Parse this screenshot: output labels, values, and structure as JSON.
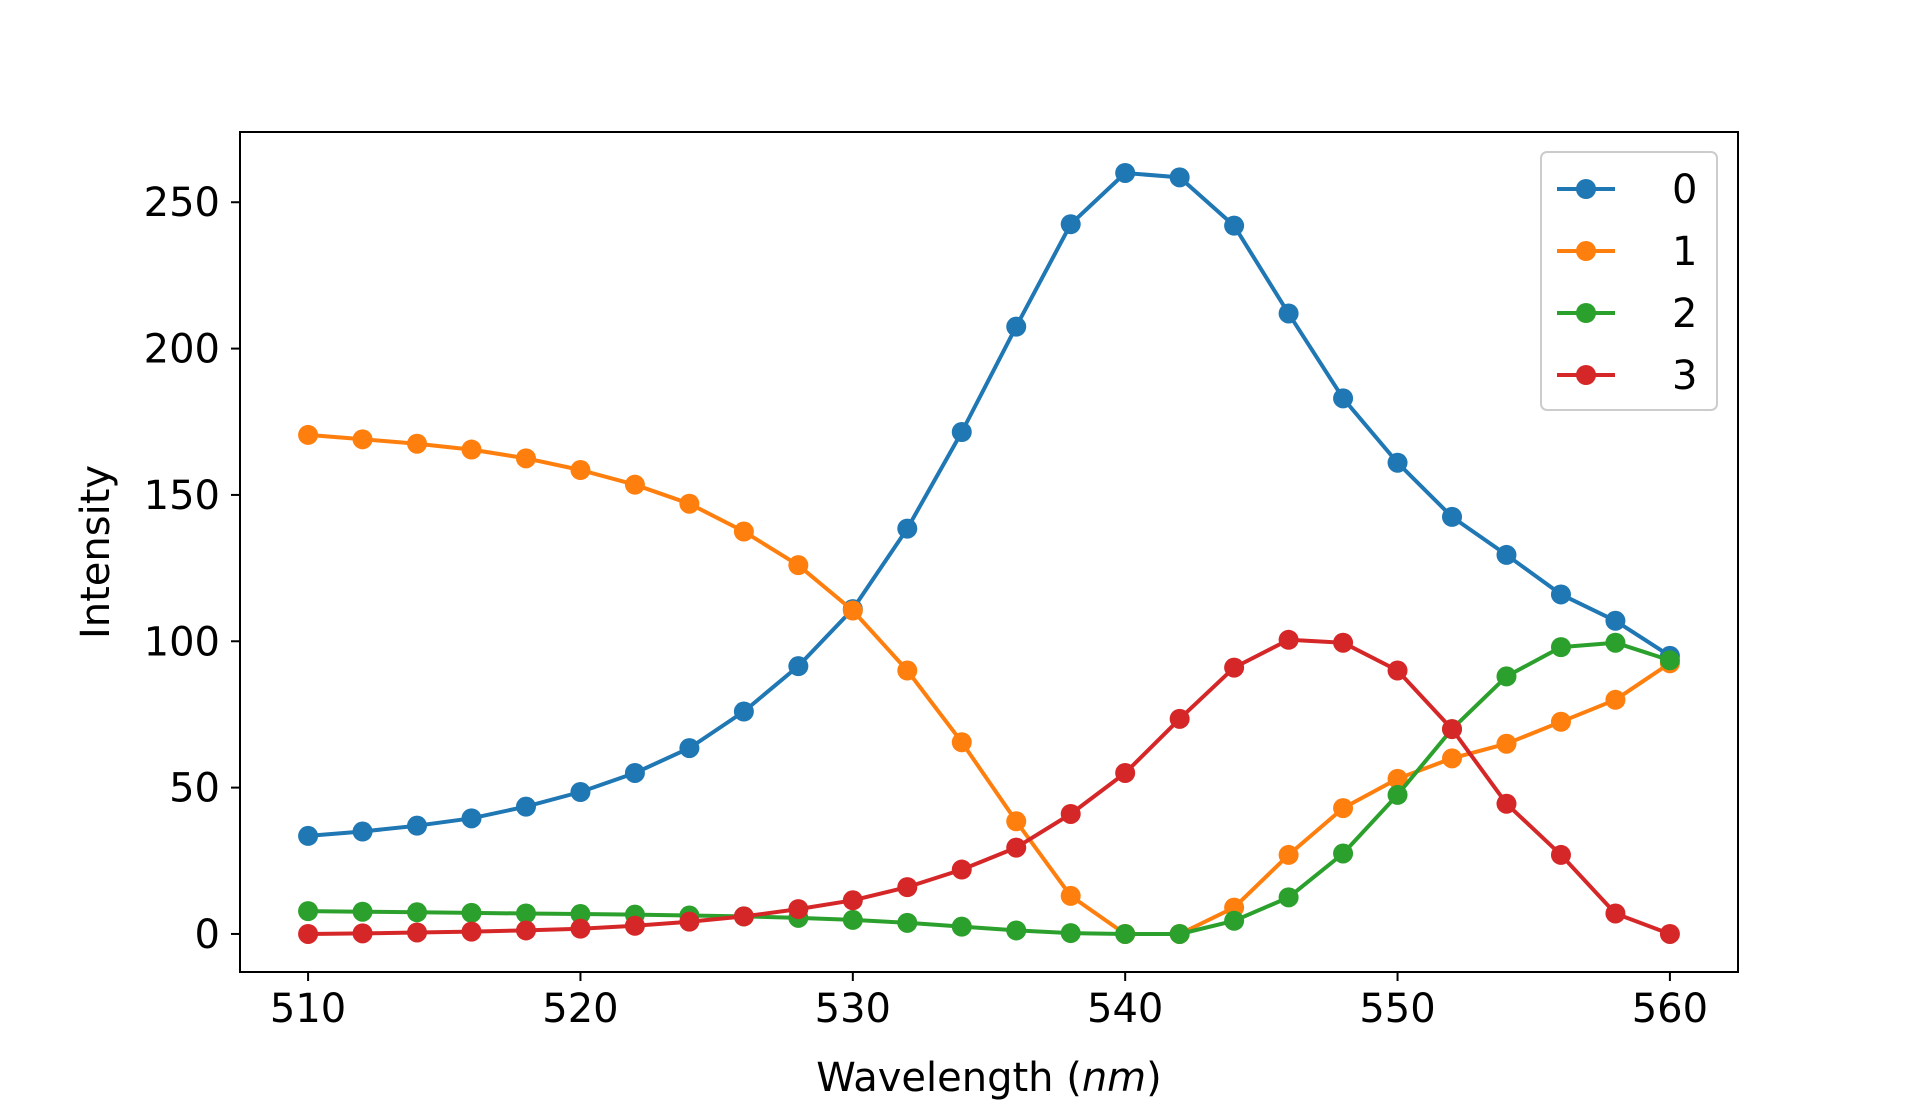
{
  "chart_data": {
    "type": "line",
    "title": "",
    "xlabel_main": "Wavelength (",
    "xlabel_unit": "nm",
    "xlabel_close": ")",
    "ylabel": "Intensity",
    "xlim": [
      507.5,
      562.5
    ],
    "ylim": [
      -13,
      274
    ],
    "xticks": [
      510,
      520,
      530,
      540,
      550,
      560
    ],
    "yticks": [
      0,
      50,
      100,
      150,
      200,
      250
    ],
    "grid": false,
    "legend_position": "top-right",
    "x": [
      510,
      512,
      514,
      516,
      518,
      520,
      522,
      524,
      526,
      528,
      530,
      532,
      534,
      536,
      538,
      540,
      542,
      544,
      546,
      548,
      550,
      552,
      554,
      556,
      558,
      560
    ],
    "series": [
      {
        "name": "0",
        "color": "#1f77b4",
        "values": [
          33.5,
          35,
          37,
          39.5,
          43.5,
          48.5,
          55,
          63.5,
          76,
          91.5,
          111,
          138.5,
          171.5,
          207.5,
          242.5,
          260,
          258.5,
          242,
          212,
          183,
          161,
          142.5,
          129.5,
          116,
          107,
          95
        ]
      },
      {
        "name": "1",
        "color": "#ff7f0e",
        "values": [
          170.5,
          169,
          167.5,
          165.5,
          162.5,
          158.5,
          153.5,
          147,
          137.5,
          126,
          110.5,
          90,
          65.5,
          38.5,
          13,
          0,
          0,
          9,
          27,
          43,
          53,
          60,
          65,
          72.5,
          80,
          92.5
        ]
      },
      {
        "name": "2",
        "color": "#2ca02c",
        "values": [
          7.8,
          7.6,
          7.4,
          7.2,
          7,
          6.8,
          6.6,
          6.3,
          6,
          5.5,
          4.8,
          3.8,
          2.5,
          1.2,
          0.3,
          0,
          0,
          4.5,
          12.5,
          27.5,
          47.5,
          70,
          88,
          98,
          99.5,
          93.5
        ]
      },
      {
        "name": "3",
        "color": "#d62728",
        "values": [
          0,
          0.2,
          0.5,
          0.8,
          1.2,
          1.8,
          2.8,
          4.2,
          6,
          8.5,
          11.5,
          16,
          22,
          29.5,
          41,
          55,
          73.5,
          91,
          100.5,
          99.5,
          90,
          70,
          44.5,
          27,
          7,
          0
        ]
      }
    ]
  }
}
